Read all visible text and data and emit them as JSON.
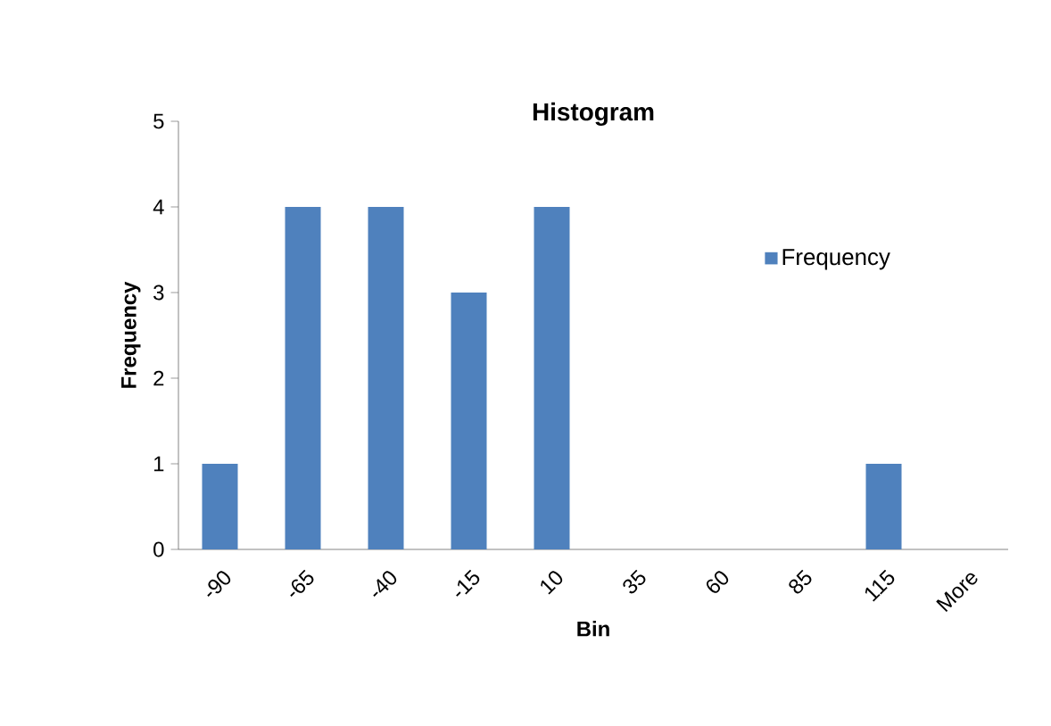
{
  "chart_data": {
    "type": "bar",
    "title": "Histogram",
    "xlabel": "Bin",
    "ylabel": "Frequency",
    "categories": [
      "-90",
      "-65",
      "-40",
      "-15",
      "10",
      "35",
      "60",
      "85",
      "115",
      "More"
    ],
    "series": [
      {
        "name": "Frequency",
        "color": "#4f81bd",
        "values": [
          1,
          4,
          4,
          3,
          4,
          0,
          0,
          0,
          1,
          0
        ]
      }
    ],
    "ylim": [
      0,
      5
    ],
    "yticks": [
      0,
      1,
      2,
      3,
      4,
      5
    ],
    "grid": false,
    "legend": "right"
  }
}
